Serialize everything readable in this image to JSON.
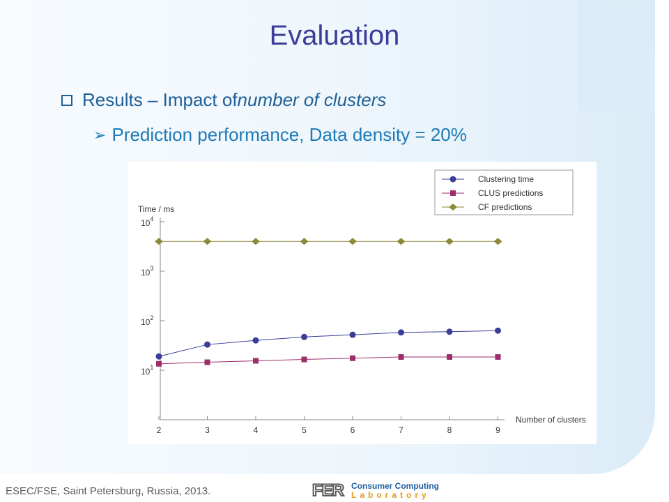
{
  "slide": {
    "title": "Evaluation",
    "bullet1_prefix": "Results – Impact of ",
    "bullet1_italic": "number of clusters",
    "bullet2": "Prediction performance, Data density = 20%",
    "footer": "ESEC/FSE, Saint Petersburg, Russia, 2013.",
    "logo": {
      "mark": "FER",
      "line1": "Consumer Computing",
      "line2": "Laboratory"
    },
    "colors": {
      "title": "#3b3c9a",
      "bullet": "#1f5f96",
      "subbullet": "#1d7ab6"
    }
  },
  "chart_data": {
    "type": "line",
    "ylabel": "Time / ms",
    "xlabel": "Number of clusters",
    "yscale": "log",
    "ylim": [
      10,
      10000
    ],
    "x": [
      2,
      3,
      4,
      5,
      6,
      7,
      8,
      9
    ],
    "y_ticks": [
      {
        "base": "10",
        "exp": "4",
        "value": 10000
      },
      {
        "base": "10",
        "exp": "3",
        "value": 1000
      },
      {
        "base": "10",
        "exp": "2",
        "value": 100
      },
      {
        "base": "10",
        "exp": "1",
        "value": 10
      }
    ],
    "x_tick_labels": [
      "2",
      "3",
      "4",
      "5",
      "6",
      "7",
      "8",
      "9"
    ],
    "legend_position": "top-right",
    "series": [
      {
        "name": "Clustering time",
        "values": [
          19,
          33,
          40,
          47,
          52,
          58,
          60,
          63
        ],
        "color": "#3a3e98",
        "marker": "circle"
      },
      {
        "name": "CLUS predictions",
        "values": [
          13.5,
          14.5,
          15.5,
          16.5,
          17.5,
          18.5,
          18.5,
          18.5
        ],
        "color": "#9b2e6b",
        "marker": "square"
      },
      {
        "name": "CF predictions",
        "values": [
          4000,
          4000,
          4000,
          4000,
          4000,
          4000,
          4000,
          4000
        ],
        "color": "#8c8a3a",
        "marker": "diamond"
      }
    ]
  }
}
